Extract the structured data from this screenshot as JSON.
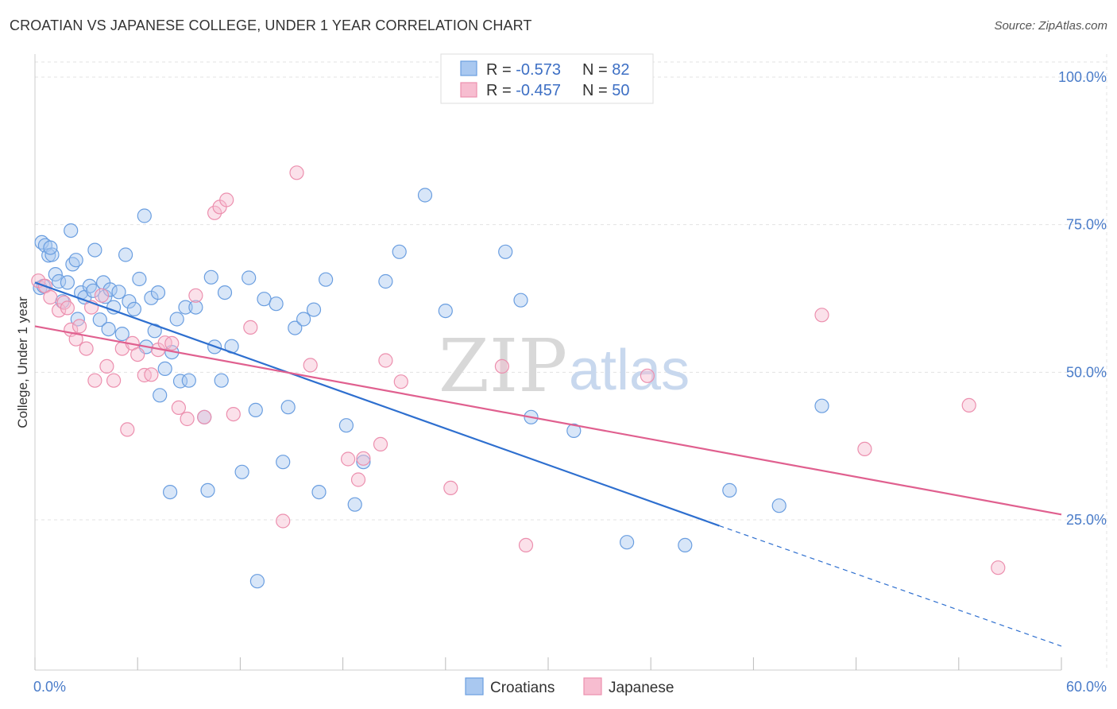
{
  "title": "CROATIAN VS JAPANESE COLLEGE, UNDER 1 YEAR CORRELATION CHART",
  "source": "Source: ZipAtlas.com",
  "watermark": {
    "zip": "ZIP",
    "atlas": "atlas"
  },
  "legend": {
    "rows": [
      {
        "r_label": "R = ",
        "r_value": "-0.573",
        "n_label": "N = ",
        "n_value": "82"
      },
      {
        "r_label": "R = ",
        "r_value": "-0.457",
        "n_label": "N = ",
        "n_value": "50"
      }
    ]
  },
  "bottom_legend": [
    "Croatians",
    "Japanese"
  ],
  "colors": {
    "croatians_fill": "#a9c8f0",
    "croatians_stroke": "#6a9ee0",
    "croatians_line": "#2e6fcf",
    "japanese_fill": "#f7bdd0",
    "japanese_stroke": "#ec8fae",
    "japanese_line": "#e0608f",
    "grid": "#e3e3e3",
    "tick_label": "#4a7cc9"
  },
  "chart_data": {
    "type": "scatter",
    "title": "CROATIAN VS JAPANESE COLLEGE, UNDER 1 YEAR CORRELATION CHART",
    "xlabel": "",
    "ylabel": "College, Under 1 year",
    "xlim": [
      0,
      60
    ],
    "ylim": [
      0,
      105
    ],
    "x_tick_labels": [
      "0.0%",
      "60.0%"
    ],
    "y_ticks": [
      25,
      50,
      75,
      100
    ],
    "y_tick_labels": [
      "25.0%",
      "50.0%",
      "75.0%",
      "100.0%"
    ],
    "grid": true,
    "series": [
      {
        "name": "Croatians",
        "r": -0.573,
        "n": 82,
        "trend": {
          "x_start": 0,
          "y_start": 65.2,
          "x_end": 40,
          "y_end": 24.0,
          "dashed_to_x": 60,
          "dashed_to_y": 3.6
        },
        "points": [
          [
            0.3,
            64.3
          ],
          [
            0.5,
            64.6
          ],
          [
            0.4,
            72.0
          ],
          [
            0.6,
            71.5
          ],
          [
            0.8,
            69.8
          ],
          [
            1.0,
            69.9
          ],
          [
            0.9,
            71.1
          ],
          [
            1.2,
            66.6
          ],
          [
            1.4,
            65.4
          ],
          [
            1.6,
            62.0
          ],
          [
            1.9,
            65.2
          ],
          [
            2.2,
            68.3
          ],
          [
            2.1,
            74.0
          ],
          [
            2.4,
            69.0
          ],
          [
            2.5,
            59.0
          ],
          [
            2.7,
            63.5
          ],
          [
            2.9,
            62.7
          ],
          [
            3.2,
            64.6
          ],
          [
            3.4,
            63.8
          ],
          [
            3.5,
            70.7
          ],
          [
            3.8,
            58.9
          ],
          [
            4.0,
            65.2
          ],
          [
            4.1,
            62.8
          ],
          [
            4.3,
            57.3
          ],
          [
            4.4,
            64.0
          ],
          [
            4.6,
            61.0
          ],
          [
            4.9,
            63.6
          ],
          [
            5.1,
            56.5
          ],
          [
            5.3,
            69.9
          ],
          [
            5.5,
            62.0
          ],
          [
            5.8,
            60.7
          ],
          [
            6.1,
            65.8
          ],
          [
            6.5,
            54.3
          ],
          [
            6.4,
            76.5
          ],
          [
            6.8,
            62.6
          ],
          [
            7.0,
            57.0
          ],
          [
            7.2,
            63.5
          ],
          [
            7.3,
            46.1
          ],
          [
            7.6,
            50.6
          ],
          [
            8.0,
            53.4
          ],
          [
            8.3,
            59.0
          ],
          [
            8.5,
            48.5
          ],
          [
            8.8,
            61.0
          ],
          [
            7.9,
            29.7
          ],
          [
            9.0,
            48.6
          ],
          [
            9.4,
            61.0
          ],
          [
            9.9,
            42.4
          ],
          [
            10.3,
            66.1
          ],
          [
            10.5,
            54.3
          ],
          [
            10.1,
            30.0
          ],
          [
            10.9,
            48.6
          ],
          [
            11.1,
            63.5
          ],
          [
            11.5,
            54.4
          ],
          [
            12.1,
            33.1
          ],
          [
            12.5,
            66.0
          ],
          [
            12.9,
            43.6
          ],
          [
            13.4,
            62.4
          ],
          [
            13.0,
            14.6
          ],
          [
            14.1,
            61.6
          ],
          [
            14.5,
            34.8
          ],
          [
            14.8,
            44.1
          ],
          [
            15.2,
            57.5
          ],
          [
            15.7,
            59.0
          ],
          [
            16.3,
            60.6
          ],
          [
            16.6,
            29.7
          ],
          [
            17.0,
            65.7
          ],
          [
            18.2,
            41.0
          ],
          [
            18.7,
            27.6
          ],
          [
            19.2,
            34.8
          ],
          [
            20.5,
            65.4
          ],
          [
            21.3,
            70.4
          ],
          [
            22.8,
            80.0
          ],
          [
            24.0,
            60.4
          ],
          [
            27.5,
            70.4
          ],
          [
            28.4,
            62.2
          ],
          [
            29.0,
            42.4
          ],
          [
            31.5,
            40.1
          ],
          [
            34.6,
            21.2
          ],
          [
            38.0,
            20.7
          ],
          [
            40.6,
            30.0
          ],
          [
            43.5,
            27.4
          ],
          [
            46.0,
            44.3
          ]
        ]
      },
      {
        "name": "Japanese",
        "r": -0.457,
        "n": 50,
        "trend": {
          "x_start": 0,
          "y_start": 57.8,
          "x_end": 60,
          "y_end": 25.9
        },
        "points": [
          [
            0.2,
            65.5
          ],
          [
            0.6,
            64.6
          ],
          [
            0.9,
            62.7
          ],
          [
            1.4,
            60.5
          ],
          [
            1.7,
            61.8
          ],
          [
            1.9,
            60.9
          ],
          [
            2.1,
            57.2
          ],
          [
            2.4,
            55.6
          ],
          [
            2.6,
            57.8
          ],
          [
            3.0,
            54.0
          ],
          [
            3.3,
            61.0
          ],
          [
            3.5,
            48.6
          ],
          [
            3.9,
            63.0
          ],
          [
            4.2,
            51.0
          ],
          [
            4.6,
            48.6
          ],
          [
            5.1,
            54.0
          ],
          [
            5.4,
            40.3
          ],
          [
            5.7,
            54.9
          ],
          [
            6.0,
            53.0
          ],
          [
            6.4,
            49.5
          ],
          [
            6.8,
            49.6
          ],
          [
            7.2,
            53.8
          ],
          [
            7.6,
            55.0
          ],
          [
            8.0,
            54.9
          ],
          [
            8.4,
            44.0
          ],
          [
            8.9,
            42.1
          ],
          [
            9.4,
            63.0
          ],
          [
            9.9,
            42.4
          ],
          [
            10.5,
            77.0
          ],
          [
            10.8,
            78.0
          ],
          [
            11.2,
            79.2
          ],
          [
            11.6,
            42.9
          ],
          [
            12.6,
            57.6
          ],
          [
            14.5,
            24.8
          ],
          [
            15.3,
            83.8
          ],
          [
            16.1,
            51.2
          ],
          [
            18.3,
            35.3
          ],
          [
            18.9,
            31.8
          ],
          [
            19.2,
            35.4
          ],
          [
            20.2,
            37.8
          ],
          [
            20.5,
            52.0
          ],
          [
            21.4,
            48.4
          ],
          [
            24.3,
            30.4
          ],
          [
            27.3,
            51.0
          ],
          [
            28.7,
            20.7
          ],
          [
            35.8,
            49.4
          ],
          [
            46.0,
            59.7
          ],
          [
            48.5,
            37.0
          ],
          [
            54.6,
            44.4
          ],
          [
            56.3,
            16.9
          ]
        ]
      }
    ]
  }
}
